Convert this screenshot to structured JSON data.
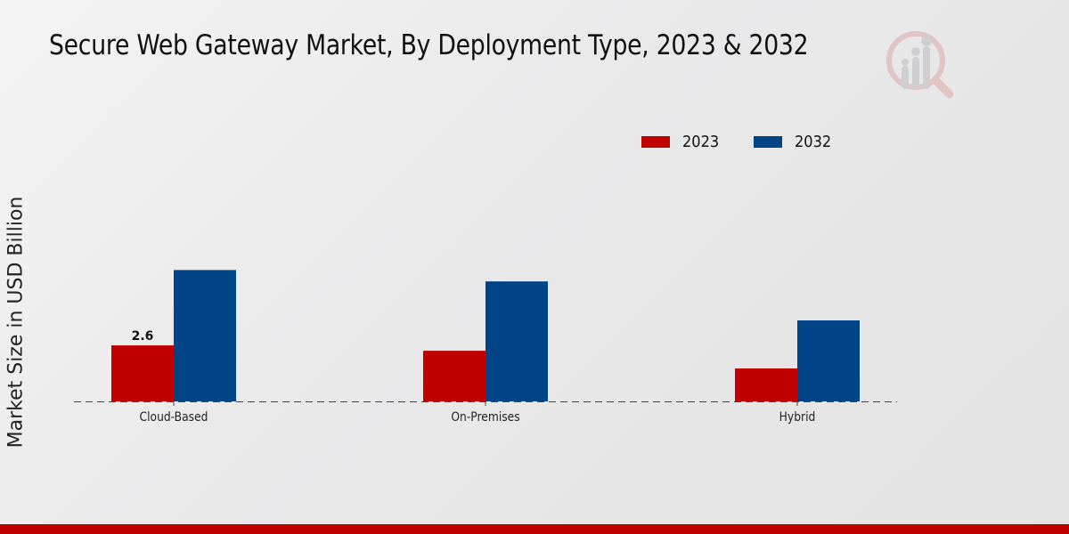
{
  "header": {
    "title": "Secure Web Gateway Market, By Deployment Type, 2023 & 2032",
    "logo_icon": "magnifier-bar-chart-logo-icon"
  },
  "colors": {
    "series_2023": "#c00000",
    "series_2032": "#004488",
    "footer": "#c00000"
  },
  "chart_data": {
    "type": "bar",
    "title": "Secure Web Gateway Market, By Deployment Type, 2023 & 2032",
    "xlabel": "",
    "ylabel": "Market Size in USD Billion",
    "categories": [
      "Cloud-Based",
      "On-Premises",
      "Hybrid"
    ],
    "series": [
      {
        "name": "2023",
        "color": "#c00000",
        "values": [
          2.6,
          2.35,
          1.53
        ]
      },
      {
        "name": "2032",
        "color": "#004488",
        "values": [
          6.1,
          5.57,
          3.76
        ]
      }
    ],
    "data_labels": [
      {
        "series": "2023",
        "category": "Cloud-Based",
        "text": "2.6"
      }
    ],
    "ylim": [
      0,
      8
    ],
    "grid": false,
    "legend_position": "top-right",
    "baseline_style": "dashed"
  }
}
